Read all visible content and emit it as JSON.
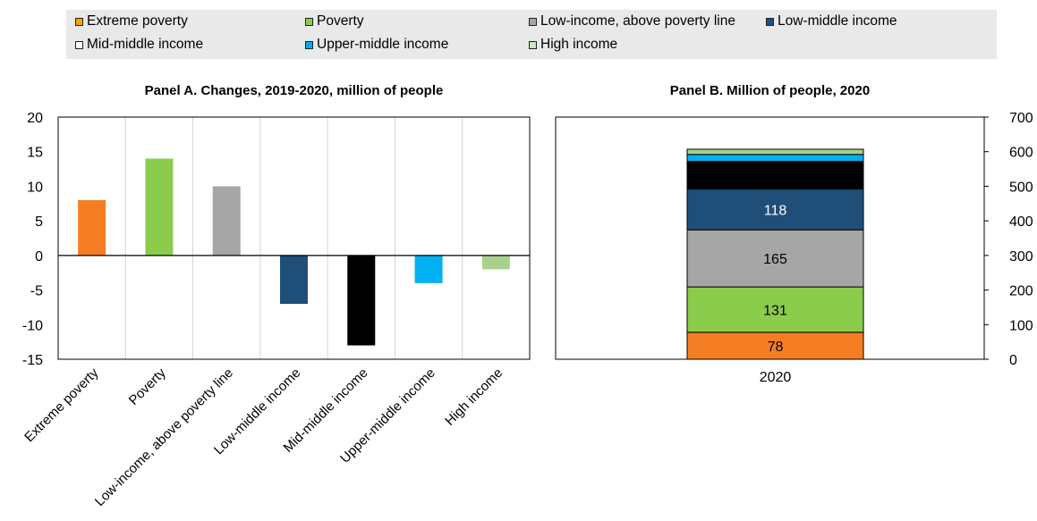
{
  "legend": [
    {
      "label": "Extreme poverty",
      "color": "#f7a600"
    },
    {
      "label": "Poverty",
      "color": "#8ccc4c"
    },
    {
      "label": "Low-income, above poverty line",
      "color": "#a6a6a6"
    },
    {
      "label": "Low-middle income",
      "color": "#1d4f91"
    },
    {
      "label": "Mid-middle income",
      "color": "#ffffff"
    },
    {
      "label": "Upper-middle income",
      "color": "#00aeef"
    },
    {
      "label": "High income",
      "color": "#c9e6b4"
    }
  ],
  "chart_data": [
    {
      "type": "bar",
      "title": "Panel A. Changes, 2019-2020, million of people",
      "categories": [
        "Extreme poverty",
        "Poverty",
        "Low-income, above poverty line",
        "Low-middle income",
        "Mid-middle income",
        "Upper-middle income",
        "High income"
      ],
      "values": [
        8,
        14,
        10,
        -7,
        -13,
        -4,
        -2
      ],
      "colors": [
        "#f47d23",
        "#8ccc4c",
        "#a6a6a6",
        "#1f4e79",
        "#000000",
        "#00b0f0",
        "#a9d18e"
      ],
      "ylim": [
        -15,
        20
      ],
      "yticks": [
        20,
        15,
        10,
        5,
        0,
        -5,
        -10,
        -15
      ],
      "grid": "vertical separators"
    },
    {
      "type": "bar",
      "stacked": true,
      "title": "Panel B. Million of people, 2020",
      "categories": [
        "2020"
      ],
      "series": [
        {
          "name": "Extreme poverty",
          "values": [
            78
          ],
          "color": "#f47d23",
          "label": "78"
        },
        {
          "name": "Poverty",
          "values": [
            131
          ],
          "color": "#8ccc4c",
          "label": "131"
        },
        {
          "name": "Low-income, above poverty line",
          "values": [
            165
          ],
          "color": "#a6a6a6",
          "label": "165"
        },
        {
          "name": "Low-middle income",
          "values": [
            118
          ],
          "color": "#1f4e79",
          "label": "118"
        },
        {
          "name": "Mid-middle income",
          "values": [
            80
          ],
          "color": "#000000",
          "label": ""
        },
        {
          "name": "Upper-middle income",
          "values": [
            20
          ],
          "color": "#00b0f0",
          "label": ""
        },
        {
          "name": "High income",
          "values": [
            15
          ],
          "color": "#a9d18e",
          "label": ""
        }
      ],
      "ylim": [
        0,
        700
      ],
      "yticks": [
        700,
        600,
        500,
        400,
        300,
        200,
        100,
        0
      ],
      "yaxis_position": "right"
    }
  ]
}
